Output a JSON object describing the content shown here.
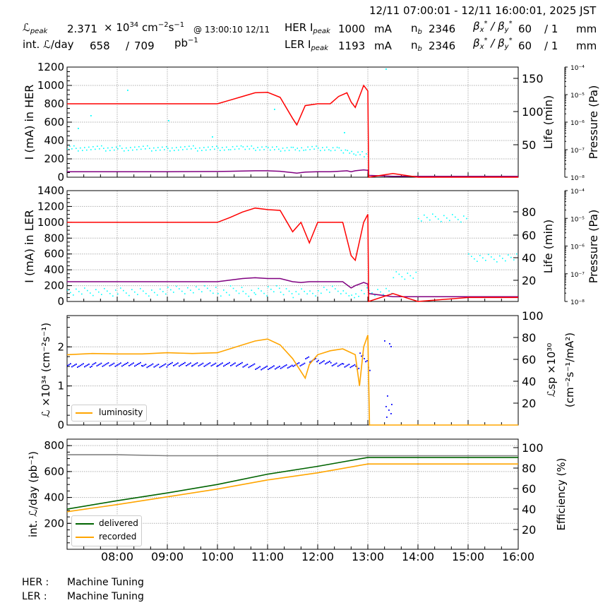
{
  "header": {
    "time_range": "12/11 07:00:01 - 12/11 16:00:01, 2025 JST",
    "peak_lumi_label": "ℒ",
    "peak_lumi_sub": "peak",
    "peak_lumi_value": "2.371",
    "peak_lumi_unit_prefix": "× 10",
    "peak_lumi_unit_exp": "34",
    "peak_lumi_unit_cm": " cm",
    "peak_lumi_unit_cm_exp": "−2",
    "peak_lumi_unit_s": "s",
    "peak_lumi_unit_s_exp": "−1",
    "peak_time": "@ 13:00:10 12/11",
    "int_lumi_label": "int. ℒ/day",
    "int_lumi_delivered": "658",
    "int_lumi_sep": "/",
    "int_lumi_total": "709",
    "int_lumi_unit": "pb",
    "int_lumi_unit_exp": "−1",
    "her": {
      "label": "HER I",
      "sub": "peak",
      "current": "1000",
      "current_unit": "mA",
      "nb_label": "n",
      "nb_sub": "b",
      "nb": "2346",
      "beta_label": "β*x / β*y",
      "beta_x": "60",
      "beta_y": "/ 1",
      "beta_unit": "mm"
    },
    "ler": {
      "label": "LER I",
      "sub": "peak",
      "current": "1193",
      "current_unit": "mA",
      "nb_label": "n",
      "nb_sub": "b",
      "nb": "2346",
      "beta_label": "β*x / β*y",
      "beta_x": "60",
      "beta_y": "/ 1",
      "beta_unit": "mm"
    }
  },
  "footer": {
    "her_label": "HER :",
    "her_status": "Machine Tuning",
    "ler_label": "LER :",
    "ler_status": "Machine Tuning"
  },
  "colors": {
    "current": "#ff0000",
    "life": "#00ffff",
    "pressure": "#800080",
    "luminosity": "#ffa500",
    "specific_lumi": "#0000ff",
    "delivered": "#006400",
    "recorded": "#ffa500",
    "efficiency": "#808080"
  },
  "chart_data": [
    {
      "type": "line",
      "title": "HER",
      "xlabel": "",
      "ylabel": "I (mA) in HER",
      "ylim": [
        0,
        1200
      ],
      "yticks": [
        "0",
        "200",
        "400",
        "600",
        "800",
        "1000",
        "1200"
      ],
      "y2label": "Life (min)",
      "y2ticks": [
        "50",
        "100",
        "150"
      ],
      "y3label": "Pressure (Pa)",
      "y3ticks": [
        "10⁻⁸",
        "10⁻⁷",
        "10⁻⁶",
        "10⁻⁵",
        "10⁻⁴"
      ],
      "x": [
        "07:00",
        "08:00",
        "09:00",
        "10:00",
        "10:15",
        "10:30",
        "10:45",
        "11:00",
        "11:15",
        "11:30",
        "11:35",
        "11:45",
        "12:00",
        "12:15",
        "12:25",
        "12:35",
        "12:40",
        "12:45",
        "12:55",
        "13:00",
        "13:01",
        "13:30",
        "14:00",
        "15:00",
        "16:00"
      ],
      "series": [
        {
          "name": "HER current (mA)",
          "values": [
            800,
            800,
            800,
            800,
            840,
            880,
            920,
            925,
            870,
            640,
            570,
            780,
            800,
            800,
            880,
            920,
            820,
            760,
            1000,
            940,
            0,
            40,
            0,
            0,
            0
          ]
        },
        {
          "name": "HER pressure (scaled to mA axis)",
          "values": [
            60,
            60,
            60,
            62,
            65,
            68,
            70,
            70,
            65,
            50,
            45,
            55,
            60,
            60,
            65,
            70,
            60,
            70,
            80,
            75,
            20,
            10,
            10,
            10,
            10
          ]
        },
        {
          "name": "HER lifetime scatter (mA-axis equivalent)",
          "values": [
            320,
            320,
            320,
            320,
            330,
            330,
            320,
            320,
            310,
            320,
            320,
            320,
            310,
            310,
            300,
            290,
            290,
            260,
            260,
            260,
            null,
            null,
            null,
            null,
            null
          ]
        }
      ]
    },
    {
      "type": "line",
      "title": "LER",
      "ylabel": "I (mA) in LER",
      "ylim": [
        0,
        1400
      ],
      "yticks": [
        "0",
        "200",
        "400",
        "600",
        "800",
        "1000",
        "1200",
        "1400"
      ],
      "y2label": "Life (min)",
      "y2ticks": [
        "20",
        "40",
        "60",
        "80"
      ],
      "y3label": "Pressure (Pa)",
      "y3ticks": [
        "10⁻⁸",
        "10⁻⁷",
        "10⁻⁶",
        "10⁻⁵",
        "10⁻⁴"
      ],
      "x": [
        "07:00",
        "08:00",
        "09:00",
        "10:00",
        "10:15",
        "10:30",
        "10:45",
        "11:00",
        "11:15",
        "11:30",
        "11:40",
        "11:50",
        "12:00",
        "12:30",
        "12:40",
        "12:45",
        "12:55",
        "13:00",
        "13:01",
        "13:30",
        "14:00",
        "15:00",
        "16:00"
      ],
      "series": [
        {
          "name": "LER current (mA)",
          "values": [
            1000,
            1000,
            1000,
            1000,
            1060,
            1130,
            1180,
            1160,
            1150,
            880,
            1000,
            740,
            1000,
            1000,
            580,
            520,
            1000,
            1100,
            0,
            100,
            0,
            50,
            50
          ]
        },
        {
          "name": "LER pressure (scaled to mA axis)",
          "values": [
            250,
            250,
            250,
            250,
            270,
            290,
            300,
            290,
            290,
            250,
            240,
            250,
            250,
            250,
            170,
            200,
            240,
            220,
            100,
            60,
            60,
            60,
            60
          ]
        },
        {
          "name": "LER lifetime (min)",
          "values": [
            10,
            10,
            12,
            10,
            12,
            10,
            10,
            12,
            10,
            8,
            10,
            10,
            12,
            10,
            8,
            10,
            12,
            10,
            10,
            25,
            75,
            40,
            38
          ]
        }
      ]
    },
    {
      "type": "line",
      "title": "Luminosity",
      "ylabel": "ℒ ×10³⁴ (cm⁻²s⁻¹)",
      "ylim": [
        0,
        2.8
      ],
      "yticks": [
        "0",
        "1",
        "2"
      ],
      "y2label": "ℒsp ×10³⁰ (cm⁻²s⁻¹/mA²)",
      "y2ticks": [
        "20",
        "40",
        "60",
        "80",
        "100"
      ],
      "legend": [
        "luminosity"
      ],
      "x": [
        "07:00",
        "07:30",
        "08:00",
        "08:30",
        "09:00",
        "09:30",
        "10:00",
        "10:30",
        "10:45",
        "11:00",
        "11:15",
        "11:30",
        "11:45",
        "11:50",
        "12:00",
        "12:15",
        "12:30",
        "12:45",
        "12:50",
        "12:55",
        "13:00",
        "13:02",
        "14:00",
        "15:00",
        "16:00"
      ],
      "series": [
        {
          "name": "luminosity",
          "values": [
            1.8,
            1.83,
            1.82,
            1.82,
            1.85,
            1.83,
            1.85,
            2.05,
            2.15,
            2.2,
            2.05,
            1.7,
            1.2,
            1.55,
            1.8,
            1.9,
            1.95,
            1.8,
            1.0,
            2.0,
            2.3,
            0,
            0,
            0,
            0
          ]
        },
        {
          "name": "specific luminosity (right axis)",
          "values": [
            55,
            56,
            56,
            55,
            56,
            56,
            56,
            55,
            53,
            53,
            54,
            56,
            63,
            60,
            58,
            56,
            55,
            53,
            65,
            60,
            52,
            null,
            null,
            null,
            null
          ]
        }
      ]
    },
    {
      "type": "line",
      "title": "Integrated luminosity per day",
      "ylabel": "int. ℒ/day (pb⁻¹)",
      "ylim": [
        0,
        850
      ],
      "yticks": [
        "200",
        "400",
        "600",
        "800"
      ],
      "y2label": "Efficiency (%)",
      "y2ticks": [
        "20",
        "40",
        "60",
        "80",
        "100"
      ],
      "xticks": [
        "08:00",
        "09:00",
        "10:00",
        "11:00",
        "12:00",
        "13:00",
        "14:00",
        "15:00",
        "16:00"
      ],
      "legend": [
        "delivered",
        "recorded"
      ],
      "x": [
        "07:00",
        "08:00",
        "09:00",
        "10:00",
        "11:00",
        "12:00",
        "13:00",
        "14:00",
        "15:00",
        "16:00"
      ],
      "series": [
        {
          "name": "delivered",
          "values": [
            310,
            375,
            435,
            500,
            580,
            640,
            709,
            709,
            709,
            709
          ]
        },
        {
          "name": "recorded",
          "values": [
            290,
            345,
            405,
            465,
            535,
            590,
            658,
            658,
            658,
            658
          ]
        },
        {
          "name": "efficiency (%)",
          "values": [
            93,
            93,
            92,
            92,
            92,
            92,
            92,
            92,
            92,
            92
          ]
        }
      ]
    }
  ]
}
